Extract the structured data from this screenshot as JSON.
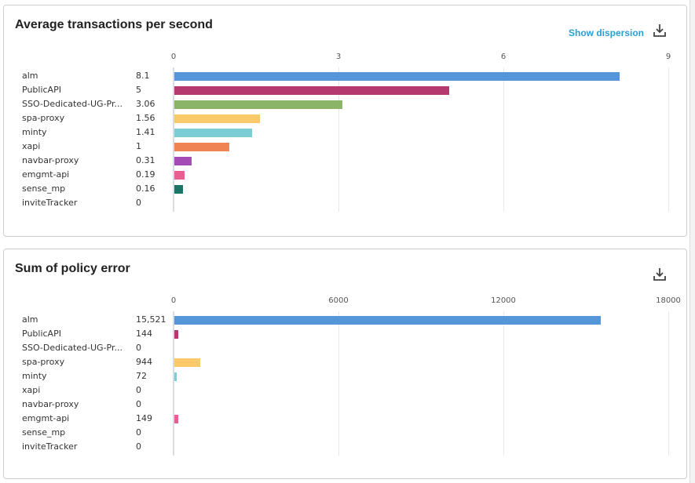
{
  "panels": [
    {
      "title": "Average transactions per second",
      "show_dispersion_label": "Show dispersion",
      "download_icon": "download-icon",
      "chart_data": {
        "type": "bar",
        "orientation": "horizontal",
        "categories": [
          "alm",
          "PublicAPI",
          "SSO-Dedicated-UG-Pr...",
          "spa-proxy",
          "minty",
          "xapi",
          "navbar-proxy",
          "emgmt-api",
          "sense_mp",
          "inviteTracker"
        ],
        "value_labels": [
          "8.1",
          "5",
          "3.06",
          "1.56",
          "1.41",
          "1",
          "0.31",
          "0.19",
          "0.16",
          "0"
        ],
        "values": [
          8.1,
          5,
          3.06,
          1.56,
          1.41,
          1,
          0.31,
          0.19,
          0.16,
          0
        ],
        "colors": [
          "#5596d8",
          "#b5396f",
          "#8bb468",
          "#fbc96a",
          "#7ccdd3",
          "#ef8452",
          "#a54bb5",
          "#ea5f92",
          "#1b7566",
          "#999999"
        ],
        "xlim": [
          0,
          9
        ],
        "ticks": [
          "0",
          "3",
          "6",
          "9"
        ],
        "tick_values": [
          0,
          3,
          6,
          9
        ],
        "grid": true
      }
    },
    {
      "title": "Sum of policy error",
      "download_icon": "download-icon",
      "chart_data": {
        "type": "bar",
        "orientation": "horizontal",
        "categories": [
          "alm",
          "PublicAPI",
          "SSO-Dedicated-UG-Pr...",
          "spa-proxy",
          "minty",
          "xapi",
          "navbar-proxy",
          "emgmt-api",
          "sense_mp",
          "inviteTracker"
        ],
        "value_labels": [
          "15,521",
          "144",
          "0",
          "944",
          "72",
          "0",
          "0",
          "149",
          "0",
          "0"
        ],
        "values": [
          15521,
          144,
          0,
          944,
          72,
          0,
          0,
          149,
          0,
          0
        ],
        "colors": [
          "#5596d8",
          "#b5396f",
          "#8bb468",
          "#fbc96a",
          "#7ccdd3",
          "#ef8452",
          "#a54bb5",
          "#ea5f92",
          "#1b7566",
          "#999999"
        ],
        "xlim": [
          0,
          18000
        ],
        "ticks": [
          "0",
          "6000",
          "12000",
          "18000"
        ],
        "tick_values": [
          0,
          6000,
          12000,
          18000
        ],
        "grid": true
      }
    }
  ]
}
